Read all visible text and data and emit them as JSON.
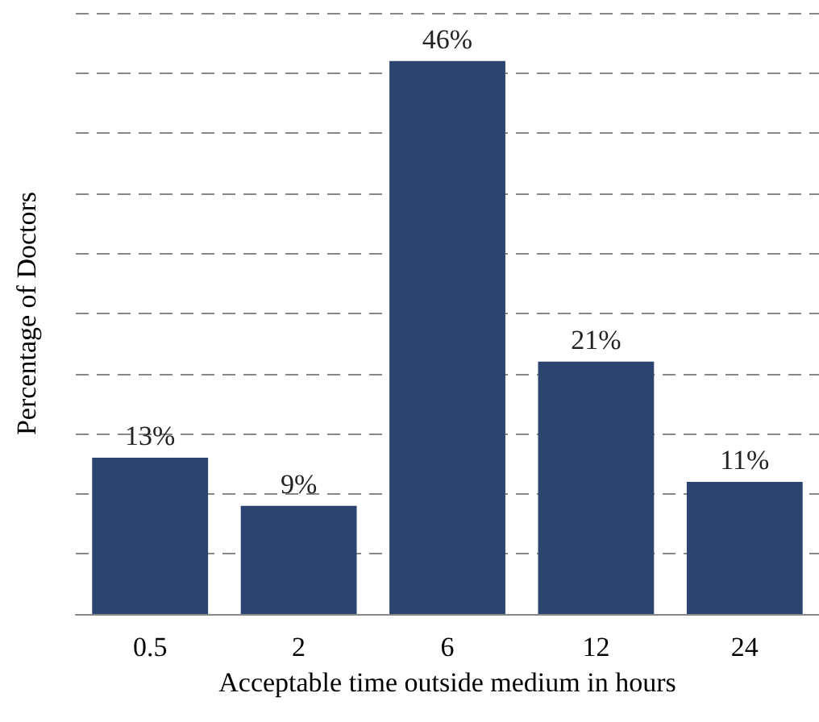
{
  "chart_data": {
    "type": "bar",
    "xlabel": "Acceptable time outside medium in hours",
    "ylabel": "Percentage of Doctors",
    "categories": [
      "0.5",
      "2",
      "6",
      "12",
      "24"
    ],
    "values": [
      13,
      9,
      46,
      21,
      11
    ],
    "value_labels": [
      "13%",
      "9%",
      "46%",
      "21%",
      "11%"
    ],
    "color": "#2b4570",
    "ylim": [
      0,
      50
    ],
    "yticks": [
      {
        "value": 0,
        "label": null
      },
      {
        "value": 5,
        "label": null
      },
      {
        "value": 10,
        "label": null
      },
      {
        "value": 15,
        "label": null
      },
      {
        "value": 20,
        "label": null
      },
      {
        "value": 25,
        "label": null
      },
      {
        "value": 30,
        "label": null
      },
      {
        "value": 35,
        "label": null
      },
      {
        "value": 40,
        "label": null
      },
      {
        "value": 45,
        "label": null
      },
      {
        "value": 50,
        "label": null
      }
    ],
    "grid": "y",
    "tick_labels": "x"
  }
}
